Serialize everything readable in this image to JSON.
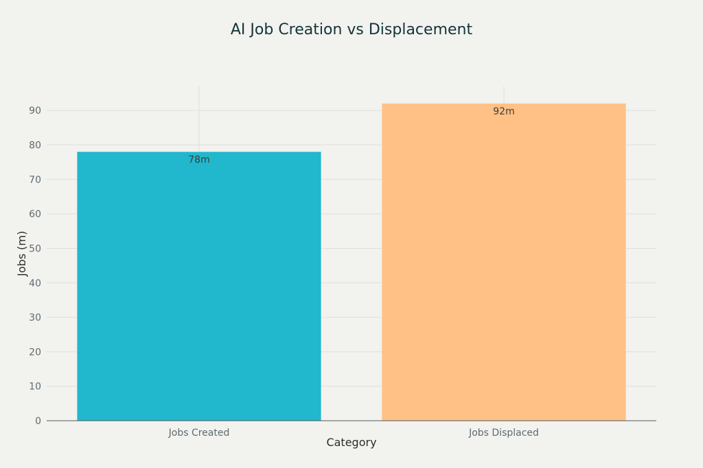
{
  "chart_data": {
    "type": "bar",
    "title": "AI Job Creation vs Displacement",
    "xlabel": "Category",
    "ylabel": "Jobs (m)",
    "categories": [
      "Jobs Created",
      "Jobs Displaced"
    ],
    "values": [
      78,
      92
    ],
    "data_labels": [
      "78m",
      "92m"
    ],
    "bar_colors": [
      "#21b8cd",
      "#ffc185"
    ],
    "ylim": [
      0,
      97
    ],
    "yticks": [
      0,
      10,
      20,
      30,
      40,
      50,
      60,
      70,
      80,
      90
    ],
    "grid": true,
    "legend": "none"
  }
}
